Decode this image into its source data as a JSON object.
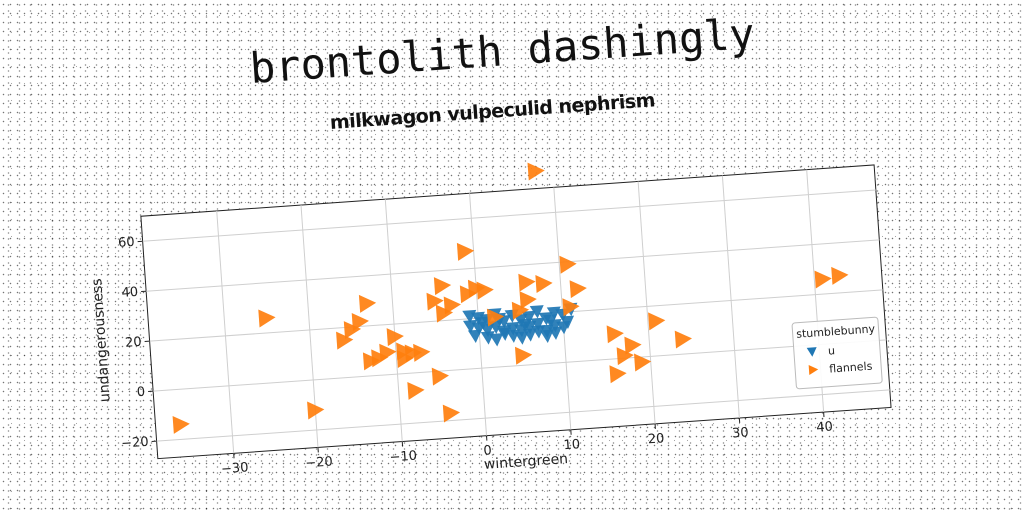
{
  "header": {
    "title": "brontolith dashingly"
  },
  "chart_data": {
    "type": "scatter",
    "title": "milkwagon vulpeculid nephrism",
    "xlabel": "wintergreen",
    "ylabel": "undangerousness",
    "xlim": [
      -39,
      48
    ],
    "ylim": [
      -27,
      70
    ],
    "xticks": [
      -30,
      -20,
      -10,
      0,
      10,
      20,
      30,
      40
    ],
    "yticks": [
      -20,
      0,
      20,
      40,
      60
    ],
    "grid": true,
    "legend": {
      "title": "stumblebunny",
      "placement": "lower-right"
    },
    "series": [
      {
        "name": "u",
        "marker": "triangle-down",
        "color": "#1f77b4",
        "points": [
          [
            -1,
            21
          ],
          [
            0,
            20
          ],
          [
            1,
            19
          ],
          [
            2,
            21
          ],
          [
            3,
            18
          ],
          [
            4,
            20
          ],
          [
            5,
            18
          ],
          [
            6,
            19
          ],
          [
            7,
            21
          ],
          [
            8,
            18
          ],
          [
            9,
            20
          ],
          [
            10,
            19
          ],
          [
            11,
            21
          ],
          [
            -1,
            17
          ],
          [
            0,
            16
          ],
          [
            1,
            15
          ],
          [
            2,
            16
          ],
          [
            3,
            14
          ],
          [
            4,
            15
          ],
          [
            5,
            14
          ],
          [
            6,
            15
          ],
          [
            7,
            16
          ],
          [
            8,
            13
          ],
          [
            9,
            15
          ],
          [
            10,
            14
          ],
          [
            1,
            12
          ],
          [
            2,
            11
          ],
          [
            4,
            12
          ],
          [
            5,
            11
          ],
          [
            6,
            12
          ],
          [
            8,
            11
          ],
          [
            9,
            12
          ],
          [
            -0.5,
            13
          ],
          [
            3,
            13
          ],
          [
            7,
            13
          ],
          [
            10.5,
            16
          ],
          [
            0.5,
            18
          ],
          [
            2.5,
            19
          ],
          [
            5.5,
            16
          ],
          [
            8.5,
            17
          ]
        ]
      },
      {
        "name": "flannels",
        "marker": "triangle-right",
        "color": "#ff7f0e",
        "points": [
          [
            8,
            77
          ],
          [
            -1,
            47
          ],
          [
            11,
            39
          ],
          [
            -4,
            34
          ],
          [
            -1,
            30
          ],
          [
            0,
            32
          ],
          [
            1,
            31
          ],
          [
            6,
            33
          ],
          [
            8,
            32
          ],
          [
            12,
            29
          ],
          [
            -5,
            28
          ],
          [
            -3,
            26
          ],
          [
            -4,
            23
          ],
          [
            6,
            26
          ],
          [
            5,
            22
          ],
          [
            11,
            22
          ],
          [
            2,
            20
          ],
          [
            -13,
            29
          ],
          [
            -25,
            26
          ],
          [
            -14,
            22
          ],
          [
            -15,
            19
          ],
          [
            -16,
            15
          ],
          [
            -10,
            15
          ],
          [
            -11,
            9
          ],
          [
            -9,
            9
          ],
          [
            -8,
            8
          ],
          [
            -7,
            8
          ],
          [
            -12,
            7
          ],
          [
            -13,
            6
          ],
          [
            -9,
            6
          ],
          [
            16,
            10
          ],
          [
            21,
            14
          ],
          [
            24,
            6
          ],
          [
            18,
            5
          ],
          [
            17,
            1
          ],
          [
            19,
            -2
          ],
          [
            5,
            4
          ],
          [
            -5,
            -2
          ],
          [
            -8,
            -7
          ],
          [
            16,
            -6
          ],
          [
            -20,
            -12
          ],
          [
            -36,
            -14
          ],
          [
            -4,
            -17
          ],
          [
            41,
            26
          ],
          [
            43,
            27
          ]
        ]
      }
    ]
  }
}
